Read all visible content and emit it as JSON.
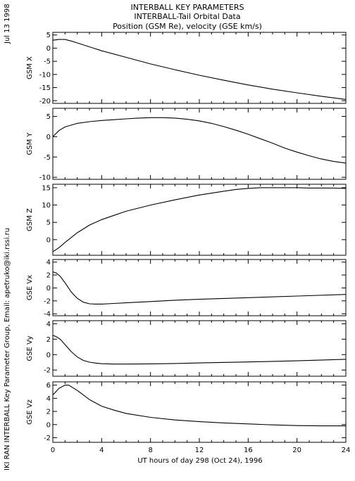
{
  "header": {
    "date": "Jul 13 1998",
    "title_lines": [
      "INTERBALL KEY PARAMETERS",
      "INTERBALL-Tail Orbital Data",
      "Position (GSM Re), velocity (GSE km/s)"
    ]
  },
  "credit": "IKI RAN INTERBALL Key Parameter Group, Email: apetruko@iki.rssi.ru",
  "chart_data": {
    "type": "line",
    "xlabel": "UT hours of day 298 (Oct 24), 1996",
    "xlim": [
      0,
      24
    ],
    "xticks": [
      0,
      4,
      8,
      12,
      16,
      20,
      24
    ],
    "panels": [
      {
        "ylabel": "GSM X",
        "ylim": [
          -21,
          6
        ],
        "yticks": [
          5,
          0,
          -5,
          -10,
          -15,
          -20
        ],
        "x": [
          0,
          0.5,
          1,
          1.5,
          2,
          3,
          4,
          6,
          8,
          10,
          12,
          14,
          16,
          18,
          20,
          22,
          24
        ],
        "y": [
          3,
          3.3,
          3.3,
          2.7,
          2.0,
          0.5,
          -1.0,
          -3.5,
          -6.0,
          -8.2,
          -10.3,
          -12.2,
          -14.0,
          -15.6,
          -17.0,
          -18.3,
          -19.5
        ]
      },
      {
        "ylabel": "GSM Y",
        "ylim": [
          -10.5,
          7
        ],
        "yticks": [
          5,
          0,
          -5,
          -10
        ],
        "x": [
          0,
          0.5,
          1,
          2,
          3,
          4,
          5,
          6,
          7,
          8,
          9,
          10,
          11,
          12,
          13,
          14,
          15,
          16,
          17,
          18,
          19,
          20,
          21,
          22,
          23,
          24
        ],
        "y": [
          0,
          1.5,
          2.4,
          3.3,
          3.7,
          4.0,
          4.2,
          4.4,
          4.6,
          4.7,
          4.7,
          4.6,
          4.3,
          3.9,
          3.3,
          2.5,
          1.6,
          0.6,
          -0.5,
          -1.6,
          -2.8,
          -3.8,
          -4.7,
          -5.5,
          -6.1,
          -6.5
        ]
      },
      {
        "ylabel": "GSM Z",
        "ylim": [
          -4.5,
          16
        ],
        "yticks": [
          15,
          10,
          5,
          0
        ],
        "x": [
          0,
          0.5,
          1,
          2,
          3,
          4,
          5,
          6,
          8,
          10,
          12,
          14,
          15,
          16,
          17,
          18,
          19,
          20,
          21,
          22,
          23,
          24
        ],
        "y": [
          -3.5,
          -2.3,
          -0.8,
          2.0,
          4.2,
          5.8,
          7.0,
          8.2,
          10.0,
          11.5,
          12.9,
          14.0,
          14.5,
          14.8,
          15.0,
          15.0,
          15.0,
          15.0,
          14.9,
          14.9,
          14.9,
          14.8
        ]
      },
      {
        "ylabel": "GSE Vx",
        "ylim": [
          -4.3,
          4.4
        ],
        "yticks": [
          4,
          2,
          0,
          -2,
          -4
        ],
        "x": [
          0,
          0.3,
          0.6,
          1,
          1.5,
          2,
          2.5,
          3,
          3.5,
          4,
          5,
          6,
          8,
          10,
          12,
          16,
          20,
          24
        ],
        "y": [
          2.5,
          2.3,
          1.8,
          0.8,
          -0.6,
          -1.6,
          -2.2,
          -2.45,
          -2.5,
          -2.5,
          -2.4,
          -2.3,
          -2.1,
          -1.9,
          -1.75,
          -1.5,
          -1.25,
          -1.0
        ]
      },
      {
        "ylabel": "GSE Vy",
        "ylim": [
          -2.8,
          4.4
        ],
        "yticks": [
          4,
          2,
          0,
          -2
        ],
        "x": [
          0,
          0.3,
          0.6,
          1,
          1.5,
          2,
          2.5,
          3,
          3.5,
          4,
          4.5,
          5,
          6,
          8,
          10,
          12,
          16,
          20,
          24
        ],
        "y": [
          2.5,
          2.3,
          2.0,
          1.3,
          0.4,
          -0.3,
          -0.75,
          -0.98,
          -1.1,
          -1.18,
          -1.2,
          -1.22,
          -1.22,
          -1.2,
          -1.15,
          -1.08,
          -0.95,
          -0.8,
          -0.6
        ]
      },
      {
        "ylabel": "GSE Vz",
        "ylim": [
          -2.7,
          6.5
        ],
        "yticks": [
          6,
          4,
          2,
          0,
          -2
        ],
        "x": [
          0,
          0.5,
          1,
          1.3,
          2,
          3,
          4,
          5,
          6,
          8,
          10,
          12,
          14,
          16,
          18,
          20,
          22,
          24
        ],
        "y": [
          4.5,
          5.5,
          6.0,
          6.0,
          5.2,
          3.8,
          2.8,
          2.2,
          1.7,
          1.1,
          0.7,
          0.45,
          0.25,
          0.1,
          -0.05,
          -0.15,
          -0.2,
          -0.2
        ]
      }
    ]
  }
}
